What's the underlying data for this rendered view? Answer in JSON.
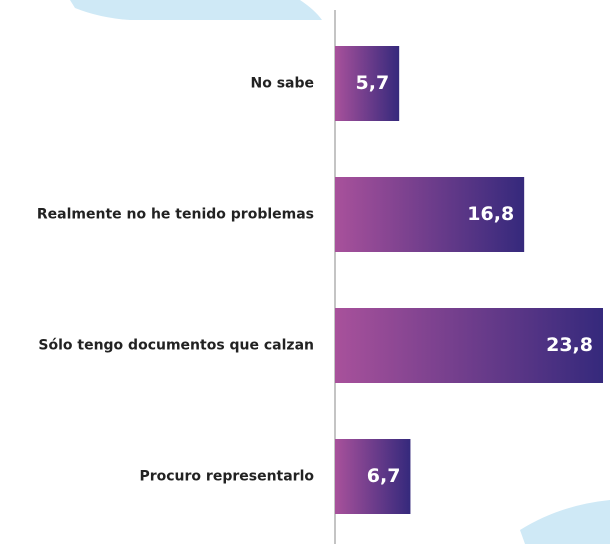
{
  "chart_data": {
    "type": "bar",
    "orientation": "horizontal",
    "categories": [
      "No sabe",
      "Realmente no he tenido problemas",
      "Sólo tengo documentos que calzan",
      "Procuro representarlo"
    ],
    "values": [
      5.7,
      16.8,
      23.8,
      6.7
    ],
    "value_labels": [
      "5,7",
      "16,8",
      "23,8",
      "6,7"
    ],
    "color": [
      "#a8519b",
      "#35297c"
    ]
  }
}
